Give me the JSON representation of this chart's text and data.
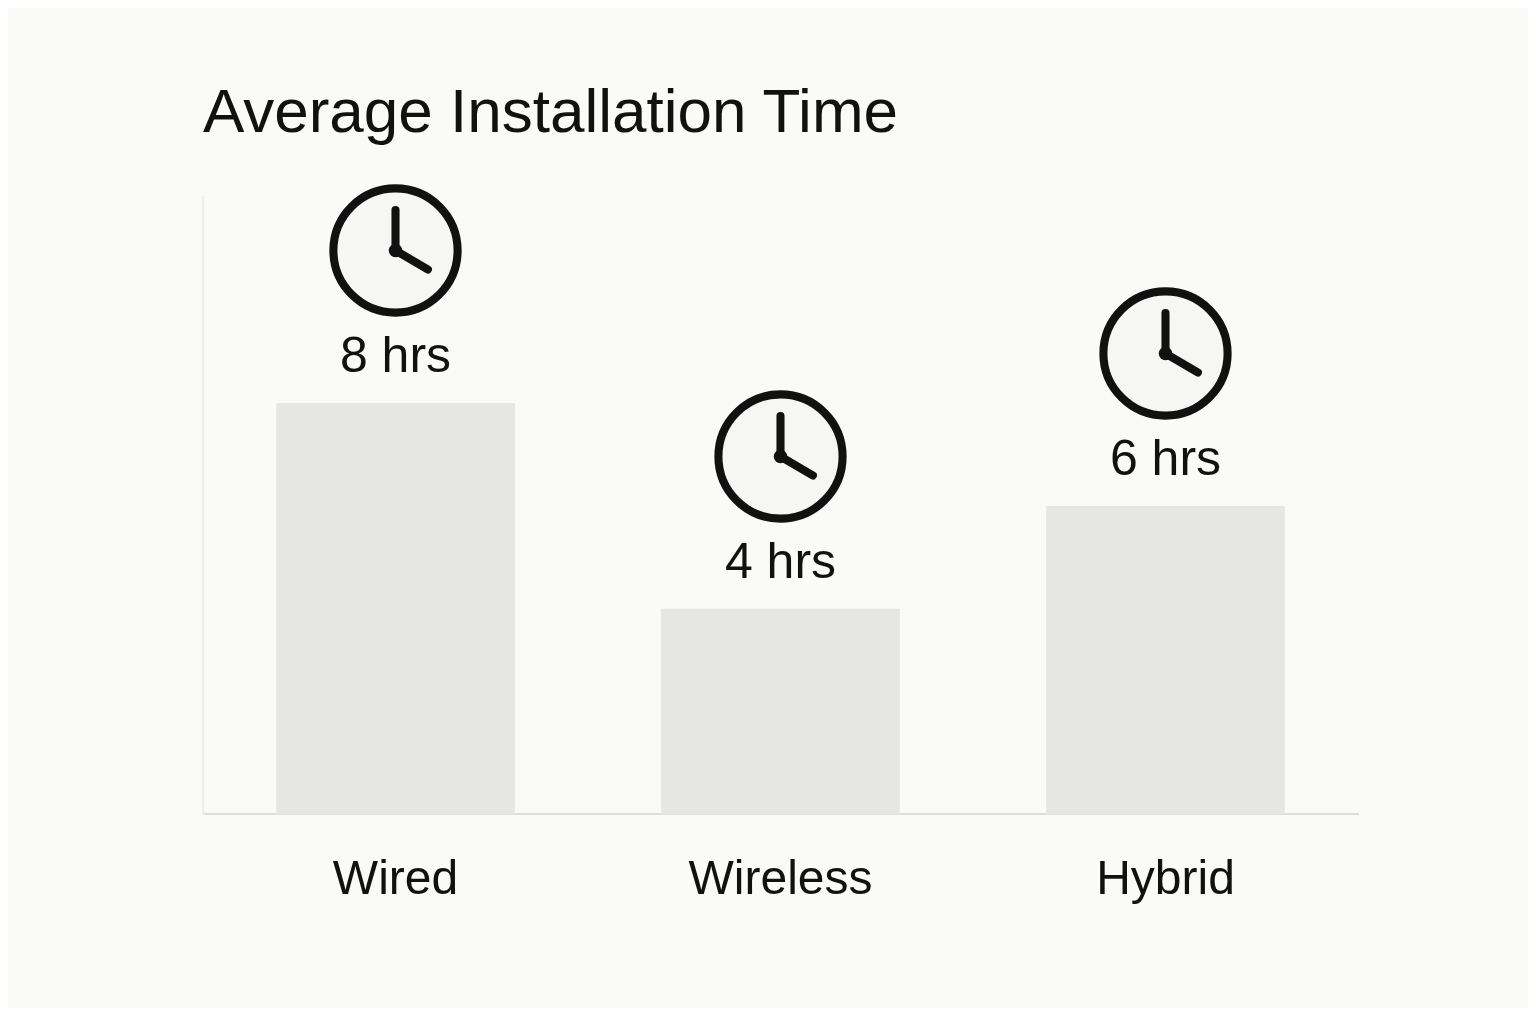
{
  "chart_data": {
    "type": "bar",
    "title": "Average Installation Time",
    "categories": [
      "Wired",
      "Wireless",
      "Hybrid"
    ],
    "values": [
      8,
      4,
      6
    ],
    "value_labels": [
      "8 hrs",
      "4 hrs",
      "6 hrs"
    ],
    "color": "#e6e6e5",
    "grid": false,
    "legend": false,
    "tick_labels": "x"
  }
}
